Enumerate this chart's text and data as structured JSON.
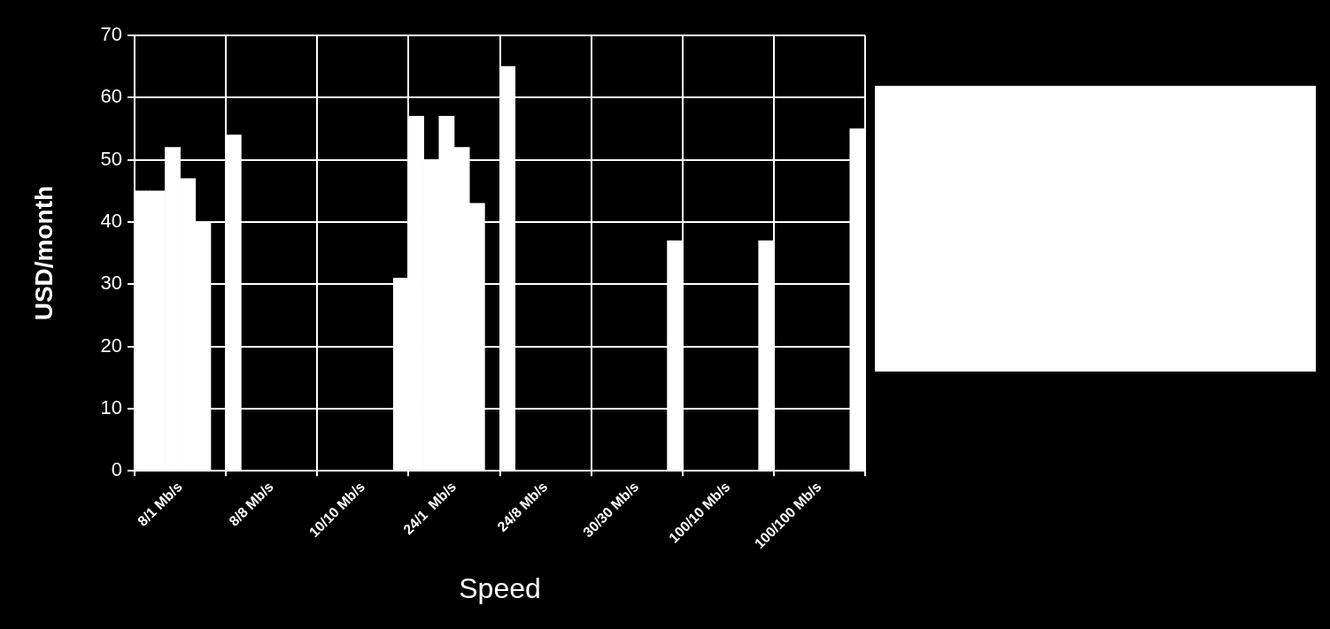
{
  "chart_data": {
    "type": "bar",
    "xlabel": "Speed",
    "ylabel": "USD/month",
    "categories": [
      "8/1 Mb/s",
      "8/8 Mb/s",
      "10/10 Mb/s",
      "24/1  Mb/s",
      "24/8 Mb/s",
      "30/30 Mb/s",
      "100/10 Mb/s",
      "100/100 Mb/s"
    ],
    "series": [
      {
        "color": "#ffffff",
        "values": [
          45,
          54,
          null,
          57,
          65,
          null,
          null,
          null
        ]
      },
      {
        "color": "#ffffff",
        "values": [
          45,
          null,
          null,
          50,
          null,
          null,
          null,
          null
        ]
      },
      {
        "color": "#ffffff",
        "values": [
          52,
          null,
          null,
          57,
          null,
          null,
          null,
          null
        ]
      },
      {
        "color": "#ffffff",
        "values": [
          47,
          null,
          null,
          52,
          null,
          null,
          null,
          null
        ]
      },
      {
        "color": "#ffffff",
        "values": [
          40,
          null,
          null,
          43,
          null,
          null,
          null,
          null
        ]
      },
      {
        "color": "#ffffff",
        "values": [
          null,
          null,
          31,
          null,
          null,
          37,
          37,
          55
        ]
      }
    ],
    "ylim": [
      0,
      70
    ],
    "yticks": [
      0,
      10,
      20,
      30,
      40,
      50,
      60,
      70
    ],
    "grid": true
  }
}
